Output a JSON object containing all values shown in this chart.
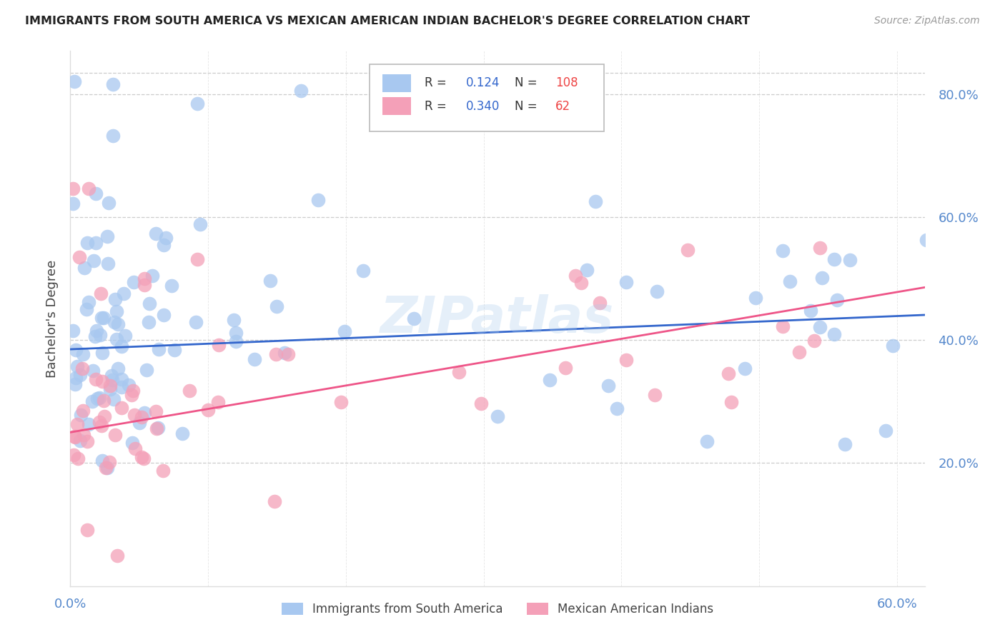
{
  "title": "IMMIGRANTS FROM SOUTH AMERICA VS MEXICAN AMERICAN INDIAN BACHELOR'S DEGREE CORRELATION CHART",
  "source": "Source: ZipAtlas.com",
  "ylabel": "Bachelor's Degree",
  "blue_R": 0.124,
  "blue_N": 108,
  "pink_R": 0.34,
  "pink_N": 62,
  "blue_color": "#A8C8F0",
  "pink_color": "#F4A0B8",
  "blue_line_color": "#3366CC",
  "pink_line_color": "#EE5588",
  "legend_label_blue": "Immigrants from South America",
  "legend_label_pink": "Mexican American Indians",
  "watermark": "ZIPatlas",
  "background_color": "#FFFFFF",
  "grid_color": "#CCCCCC",
  "axis_color": "#5588CC",
  "n_color": "#EE4444",
  "r_value_color": "#3366CC",
  "xlim": [
    0.0,
    0.62
  ],
  "ylim": [
    0.0,
    0.87
  ],
  "yticks": [
    0.2,
    0.4,
    0.6,
    0.8
  ],
  "ytick_labels": [
    "20.0%",
    "40.0%",
    "60.0%",
    "80.0%"
  ],
  "xtick_vals": [
    0.0,
    0.1,
    0.2,
    0.3,
    0.4,
    0.5,
    0.6
  ],
  "xtick_labels": [
    "0.0%",
    "",
    "",
    "",
    "",
    "",
    "60.0%"
  ],
  "blue_intercept": 0.385,
  "blue_slope": 0.09,
  "pink_intercept": 0.25,
  "pink_slope": 0.38
}
